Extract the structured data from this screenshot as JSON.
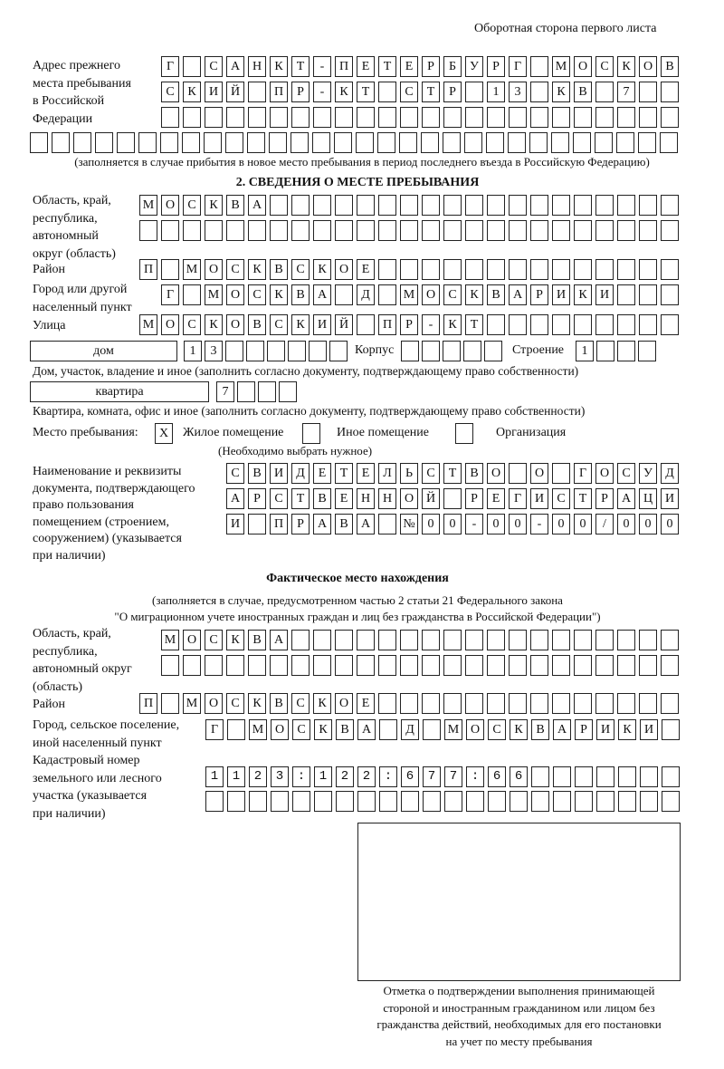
{
  "header": {
    "page_side": "Оборотная сторона первого листа"
  },
  "previous_address": {
    "label": "Адрес прежнего места пребывания в Российской Федерации",
    "label_lines": [
      "Адрес прежнего",
      "места пребывания",
      "в Российской",
      "Федерации"
    ],
    "rows": [
      "Г САНКТ-ПЕТЕРБУРГ МОСКОВ",
      "СКИЙ ПР-КТ СТР 13 КВ 7  ",
      "                        ",
      "                              "
    ],
    "note": "(заполняется в случае прибытия в новое место пребывания в период последнего въезда в Российскую Федерацию)"
  },
  "section2": {
    "title": "2. СВЕДЕНИЯ О МЕСТЕ ПРЕБЫВАНИЯ",
    "region_label_lines": [
      "Область, край,",
      "республика,",
      "автономный",
      "округ (область)"
    ],
    "region_rows": [
      "МОСКВА                   ",
      "                         "
    ],
    "district_label": "Район",
    "district_row": "П МОСКВСКОЕ              ",
    "city_label_lines": [
      "Город или другой",
      "населенный пункт"
    ],
    "city_row": "Г МОСКВА Д МОСКВАРИКИ   ",
    "street_label": "Улица",
    "street_row": "МОСКОВСКИЙ ПР-КТ         ",
    "house_type": "дом",
    "house_row": "13      ",
    "building_label": "Корпус",
    "building_row": "     ",
    "structure_label": "Строение",
    "structure_row": "1   ",
    "house_note": "Дом, участок, владение и иное (заполнить согласно документу, подтверждающему право собственности)",
    "apartment_type": "квартира",
    "apartment_row": "7   ",
    "apartment_note": "Квартира, комната, офис и иное (заполнить согласно документу, подтверждающему право собственности)",
    "stay_place_label": "Место пребывания:",
    "options": [
      {
        "label": "Жилое помещение",
        "mark": "X",
        "checked": true
      },
      {
        "label": "Иное помещение",
        "mark": "",
        "checked": false
      },
      {
        "label": "Организация",
        "mark": "",
        "checked": false
      }
    ],
    "choose_note": "(Необходимо выбрать нужное)",
    "doc_label_lines": [
      "Наименование и реквизиты",
      "документа, подтверждающего",
      "право пользования",
      "помещением (строением,",
      "сооружением) (указывается",
      "при наличии)"
    ],
    "doc_rows": [
      "СВИДЕТЕЛЬСТВО О ГОСУД",
      "АРСТВЕННОЙ РЕГИСТРАЦИ",
      "И ПРАВА №00-00-00/000"
    ]
  },
  "actual": {
    "title": "Фактическое место нахождения",
    "note_lines": [
      "(заполняется в случае, предусмотренном частью 2 статьи 21 Федерального закона",
      "\"О миграционном учете иностранных граждан и лиц без гражданства в Российской Федерации\")"
    ],
    "region_label_lines": [
      "Область, край,",
      "республика,",
      "автономный округ",
      "(область)"
    ],
    "region_rows": [
      "МОСКВА                  ",
      "                        "
    ],
    "district_label": "Район",
    "district_row": "П МОСКВСКОЕ              ",
    "city_label_lines": [
      "Город, сельское поселение,",
      "иной населенный пункт"
    ],
    "city_row": "Г МОСКВА Д МОСКВАРИКИ ",
    "cadastral_label_lines": [
      "Кадастровый номер",
      "земельного или лесного",
      "участка (указывается",
      "при наличии)"
    ],
    "cadastral_rows": [
      "1123:122:677:66       ",
      "                      "
    ]
  },
  "confirmation": {
    "caption_lines": [
      "Отметка о подтверждении выполнения принимающей",
      "стороной и иностранным гражданином или лицом без",
      "гражданства действий, необходимых для его постановки",
      "на учет по месту пребывания"
    ]
  }
}
